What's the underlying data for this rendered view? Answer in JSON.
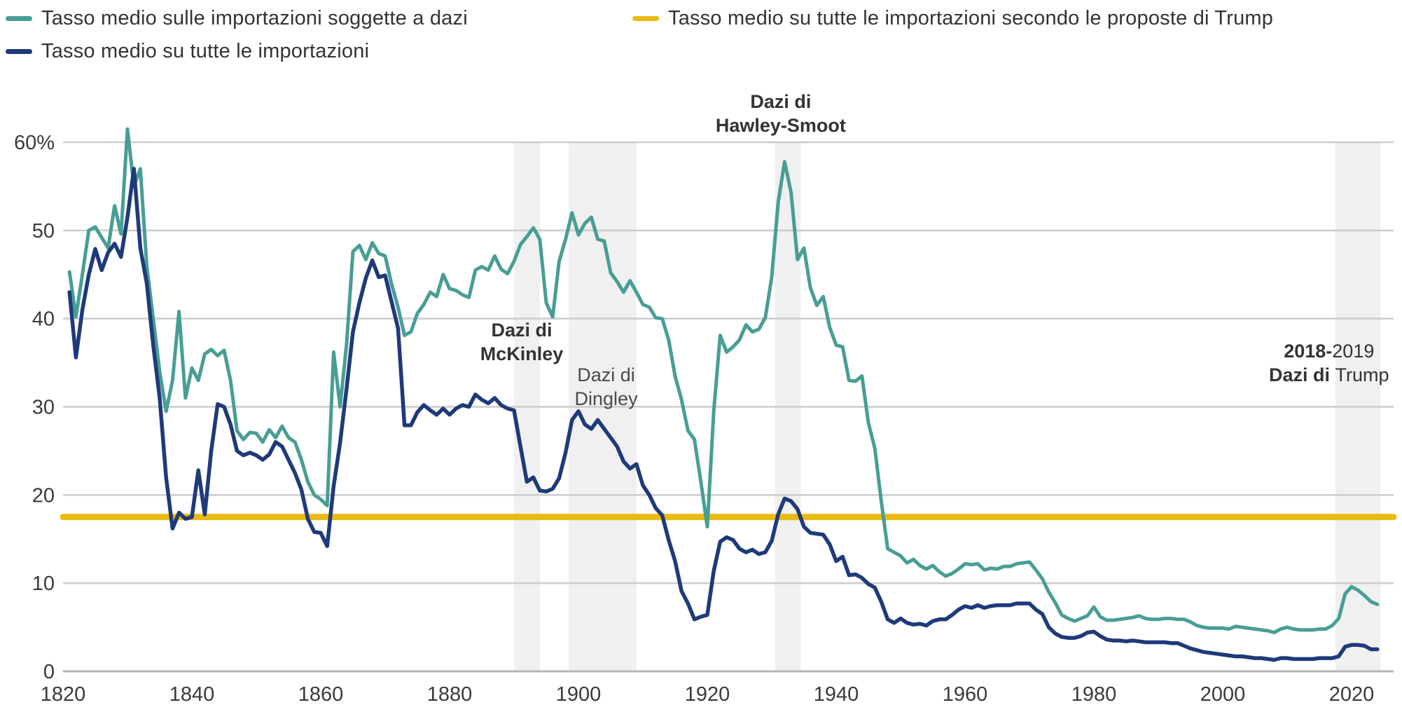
{
  "legend": {
    "items": [
      {
        "label": "Tasso medio sulle importazioni soggette a dazi"
      },
      {
        "label": "Tasso medio su tutte le importazioni"
      },
      {
        "label": "Tasso medio su tutte le importazioni secondo le proposte di Trump"
      }
    ]
  },
  "chart_data": {
    "type": "line",
    "title": "",
    "xlabel": "",
    "ylabel": "",
    "x_range": [
      1820,
      2027
    ],
    "y_range": [
      0,
      64
    ],
    "grid": "horizontal",
    "legend_position": "top",
    "y_ticks": [
      {
        "value": 0,
        "label": "0"
      },
      {
        "value": 10,
        "label": "10"
      },
      {
        "value": 20,
        "label": "20"
      },
      {
        "value": 30,
        "label": "30"
      },
      {
        "value": 40,
        "label": "40"
      },
      {
        "value": 50,
        "label": "50"
      },
      {
        "value": 60,
        "label": "60%"
      }
    ],
    "x_ticks": [
      1820,
      1840,
      1860,
      1880,
      1900,
      1920,
      1940,
      1960,
      1980,
      2000,
      2020
    ],
    "x_start_year": 1821,
    "x_step_years": 1,
    "series": [
      {
        "name": "Tasso medio sulle importazioni soggette a dazi",
        "color": "#489e94",
        "width": 5,
        "values": [
          45.3,
          40.2,
          45,
          50,
          50.4,
          49.2,
          48,
          52.8,
          49.6,
          61.5,
          55,
          57,
          46,
          40,
          34,
          29.5,
          33,
          40.8,
          31,
          34.4,
          33,
          36,
          36.5,
          35.8,
          36.4,
          33,
          27.3,
          26.3,
          27.1,
          27,
          26,
          27.4,
          26.5,
          27.8,
          26.5,
          26,
          24,
          21.5,
          20,
          19.5,
          18.8,
          36.2,
          30,
          37,
          47.6,
          48.3,
          46.7,
          48.6,
          47.4,
          47.1,
          43.9,
          41.3,
          38.1,
          38.5,
          40.6,
          41.6,
          43,
          42.5,
          45,
          43.4,
          43.2,
          42.7,
          42.4,
          45.5,
          45.9,
          45.5,
          47.1,
          45.6,
          45.1,
          46.5,
          48.4,
          49.3,
          50.3,
          49,
          41.8,
          40.2,
          46.5,
          49,
          52,
          49.5,
          50.8,
          51.5,
          49,
          48.8,
          45.2,
          44.2,
          43,
          44.3,
          43,
          41.6,
          41.3,
          40.1,
          40,
          37.6,
          33.5,
          30.8,
          27.3,
          26.3,
          21.5,
          16.4,
          29.5,
          38.1,
          36.2,
          36.8,
          37.6,
          39.3,
          38.5,
          38.8,
          40.1,
          44.7,
          53.2,
          57.8,
          54.3,
          46.7,
          48,
          43.5,
          41.5,
          42.5,
          39,
          37,
          36.8,
          33,
          32.9,
          33.5,
          28.2,
          25.3,
          19.3,
          13.9,
          13.5,
          13.1,
          12.3,
          12.7,
          12,
          11.6,
          12,
          11.3,
          10.8,
          11.1,
          11.6,
          12.2,
          12.1,
          12.2,
          11.5,
          11.7,
          11.6,
          11.9,
          11.9,
          12.2,
          12.3,
          12.4,
          11.5,
          10.5,
          9,
          7.8,
          6.4,
          6,
          5.7,
          6,
          6.3,
          7.3,
          6.2,
          5.8,
          5.8,
          5.9,
          6,
          6.1,
          6.3,
          6,
          5.9,
          5.9,
          6,
          6,
          5.9,
          5.9,
          5.6,
          5.2,
          5,
          4.9,
          4.9,
          4.9,
          4.8,
          5.1,
          5,
          4.9,
          4.8,
          4.7,
          4.6,
          4.4,
          4.8,
          5,
          4.8,
          4.7,
          4.7,
          4.7,
          4.8,
          4.8,
          5.2,
          6,
          8.8,
          9.6,
          9.2,
          8.6,
          7.9,
          7.6
        ]
      },
      {
        "name": "Tasso medio su tutte le importazioni",
        "color": "#1e3a7a",
        "width": 5.5,
        "values": [
          43,
          35.6,
          41,
          45,
          47.9,
          45.5,
          47.5,
          48.5,
          47,
          51.5,
          57,
          48,
          44,
          37,
          31,
          22,
          16.2,
          18,
          17.3,
          17.5,
          22.8,
          17.8,
          25,
          30.3,
          30,
          28,
          25,
          24.5,
          24.8,
          24.5,
          24,
          24.6,
          26,
          25.5,
          24,
          22.5,
          20.6,
          17.3,
          15.8,
          15.7,
          14.2,
          21,
          25.9,
          32,
          38.5,
          41.8,
          44.6,
          46.6,
          44.7,
          44.9,
          41.9,
          38.9,
          27.9,
          27.9,
          29.4,
          30.2,
          29.6,
          29.1,
          29.8,
          29.1,
          29.8,
          30.2,
          30,
          31.4,
          30.8,
          30.4,
          31,
          30.2,
          29.8,
          29.6,
          25.5,
          21.5,
          22,
          20.5,
          20.4,
          20.7,
          21.9,
          24.8,
          28.5,
          29.5,
          28,
          27.5,
          28.5,
          27.5,
          26.5,
          25.5,
          23.8,
          23,
          23.5,
          21.1,
          20,
          18.5,
          17.7,
          14.9,
          12.5,
          9.1,
          7.7,
          5.9,
          6.2,
          6.4,
          11.4,
          14.7,
          15.2,
          14.9,
          13.9,
          13.5,
          13.8,
          13.3,
          13.5,
          14.8,
          17.8,
          19.6,
          19.3,
          18.4,
          16.4,
          15.7,
          15.6,
          15.5,
          14.4,
          12.5,
          13,
          10.9,
          11,
          10.6,
          9.9,
          9.5,
          7.9,
          5.9,
          5.5,
          6,
          5.5,
          5.3,
          5.4,
          5.2,
          5.7,
          5.9,
          5.9,
          6.4,
          7,
          7.4,
          7.2,
          7.5,
          7.2,
          7.4,
          7.5,
          7.5,
          7.5,
          7.7,
          7.7,
          7.7,
          7,
          6.5,
          5,
          4.3,
          3.9,
          3.8,
          3.8,
          4,
          4.4,
          4.5,
          4,
          3.6,
          3.5,
          3.5,
          3.4,
          3.5,
          3.4,
          3.3,
          3.3,
          3.3,
          3.3,
          3.2,
          3.2,
          2.9,
          2.6,
          2.4,
          2.2,
          2.1,
          2,
          1.9,
          1.8,
          1.7,
          1.7,
          1.6,
          1.5,
          1.5,
          1.4,
          1.3,
          1.5,
          1.5,
          1.4,
          1.4,
          1.4,
          1.4,
          1.5,
          1.5,
          1.5,
          1.7,
          2.8,
          3,
          3,
          2.9,
          2.5,
          2.5
        ]
      },
      {
        "name": "Tasso medio su tutte le importazioni secondo le proposte di Trump",
        "color": "#e8ba12",
        "width": 9,
        "type": "hline",
        "value": 17.5
      }
    ],
    "shaded_bands": [
      {
        "name": "dazi-mckinley",
        "from": 1890,
        "to": 1894
      },
      {
        "name": "dazi-dingley",
        "from": 1898.5,
        "to": 1909
      },
      {
        "name": "dazi-hawley-smoot",
        "from": 1930.5,
        "to": 1934.5
      },
      {
        "name": "dazi-trump",
        "from": 2017.5,
        "to": 2024.5
      }
    ],
    "annotations": [
      {
        "id": "mckinley",
        "year": 1891.2,
        "color": "#333333",
        "lines": [
          {
            "pct": 38.0,
            "parts": [
              {
                "t": "Dazi di",
                "b": true
              }
            ]
          },
          {
            "pct": 35.3,
            "parts": [
              {
                "t": "McKinley",
                "b": true
              }
            ]
          }
        ]
      },
      {
        "id": "dingley",
        "year": 1904.3,
        "color": "#4a4a4a",
        "lines": [
          {
            "pct": 32.9,
            "parts": [
              {
                "t": "Dazi di",
                "b": false
              }
            ]
          },
          {
            "pct": 30.2,
            "parts": [
              {
                "t": "Dingley",
                "b": false
              }
            ]
          }
        ]
      },
      {
        "id": "hawley-smoot",
        "year": 1931.4,
        "color": "#333333",
        "lines": [
          {
            "pct": 63.9,
            "parts": [
              {
                "t": "Dazi di",
                "b": true
              }
            ]
          },
          {
            "pct": 61.2,
            "parts": [
              {
                "t": "Hawley-Smoot",
                "b": true
              }
            ]
          }
        ]
      },
      {
        "id": "trump",
        "year": 2016.5,
        "color": "#333333",
        "lines": [
          {
            "pct": 35.6,
            "parts": [
              {
                "t": "2018-",
                "b": true
              },
              {
                "t": "2019",
                "b": false
              }
            ]
          },
          {
            "pct": 32.9,
            "parts": [
              {
                "t": "Dazi di ",
                "b": true
              },
              {
                "t": "Trump",
                "b": false
              }
            ]
          }
        ]
      }
    ],
    "colors": {
      "gridline": "#cccccc",
      "baseline": "#b5b5b5",
      "band_fill": "#f0f0f0",
      "axis_text": "#3a3a3a"
    }
  }
}
